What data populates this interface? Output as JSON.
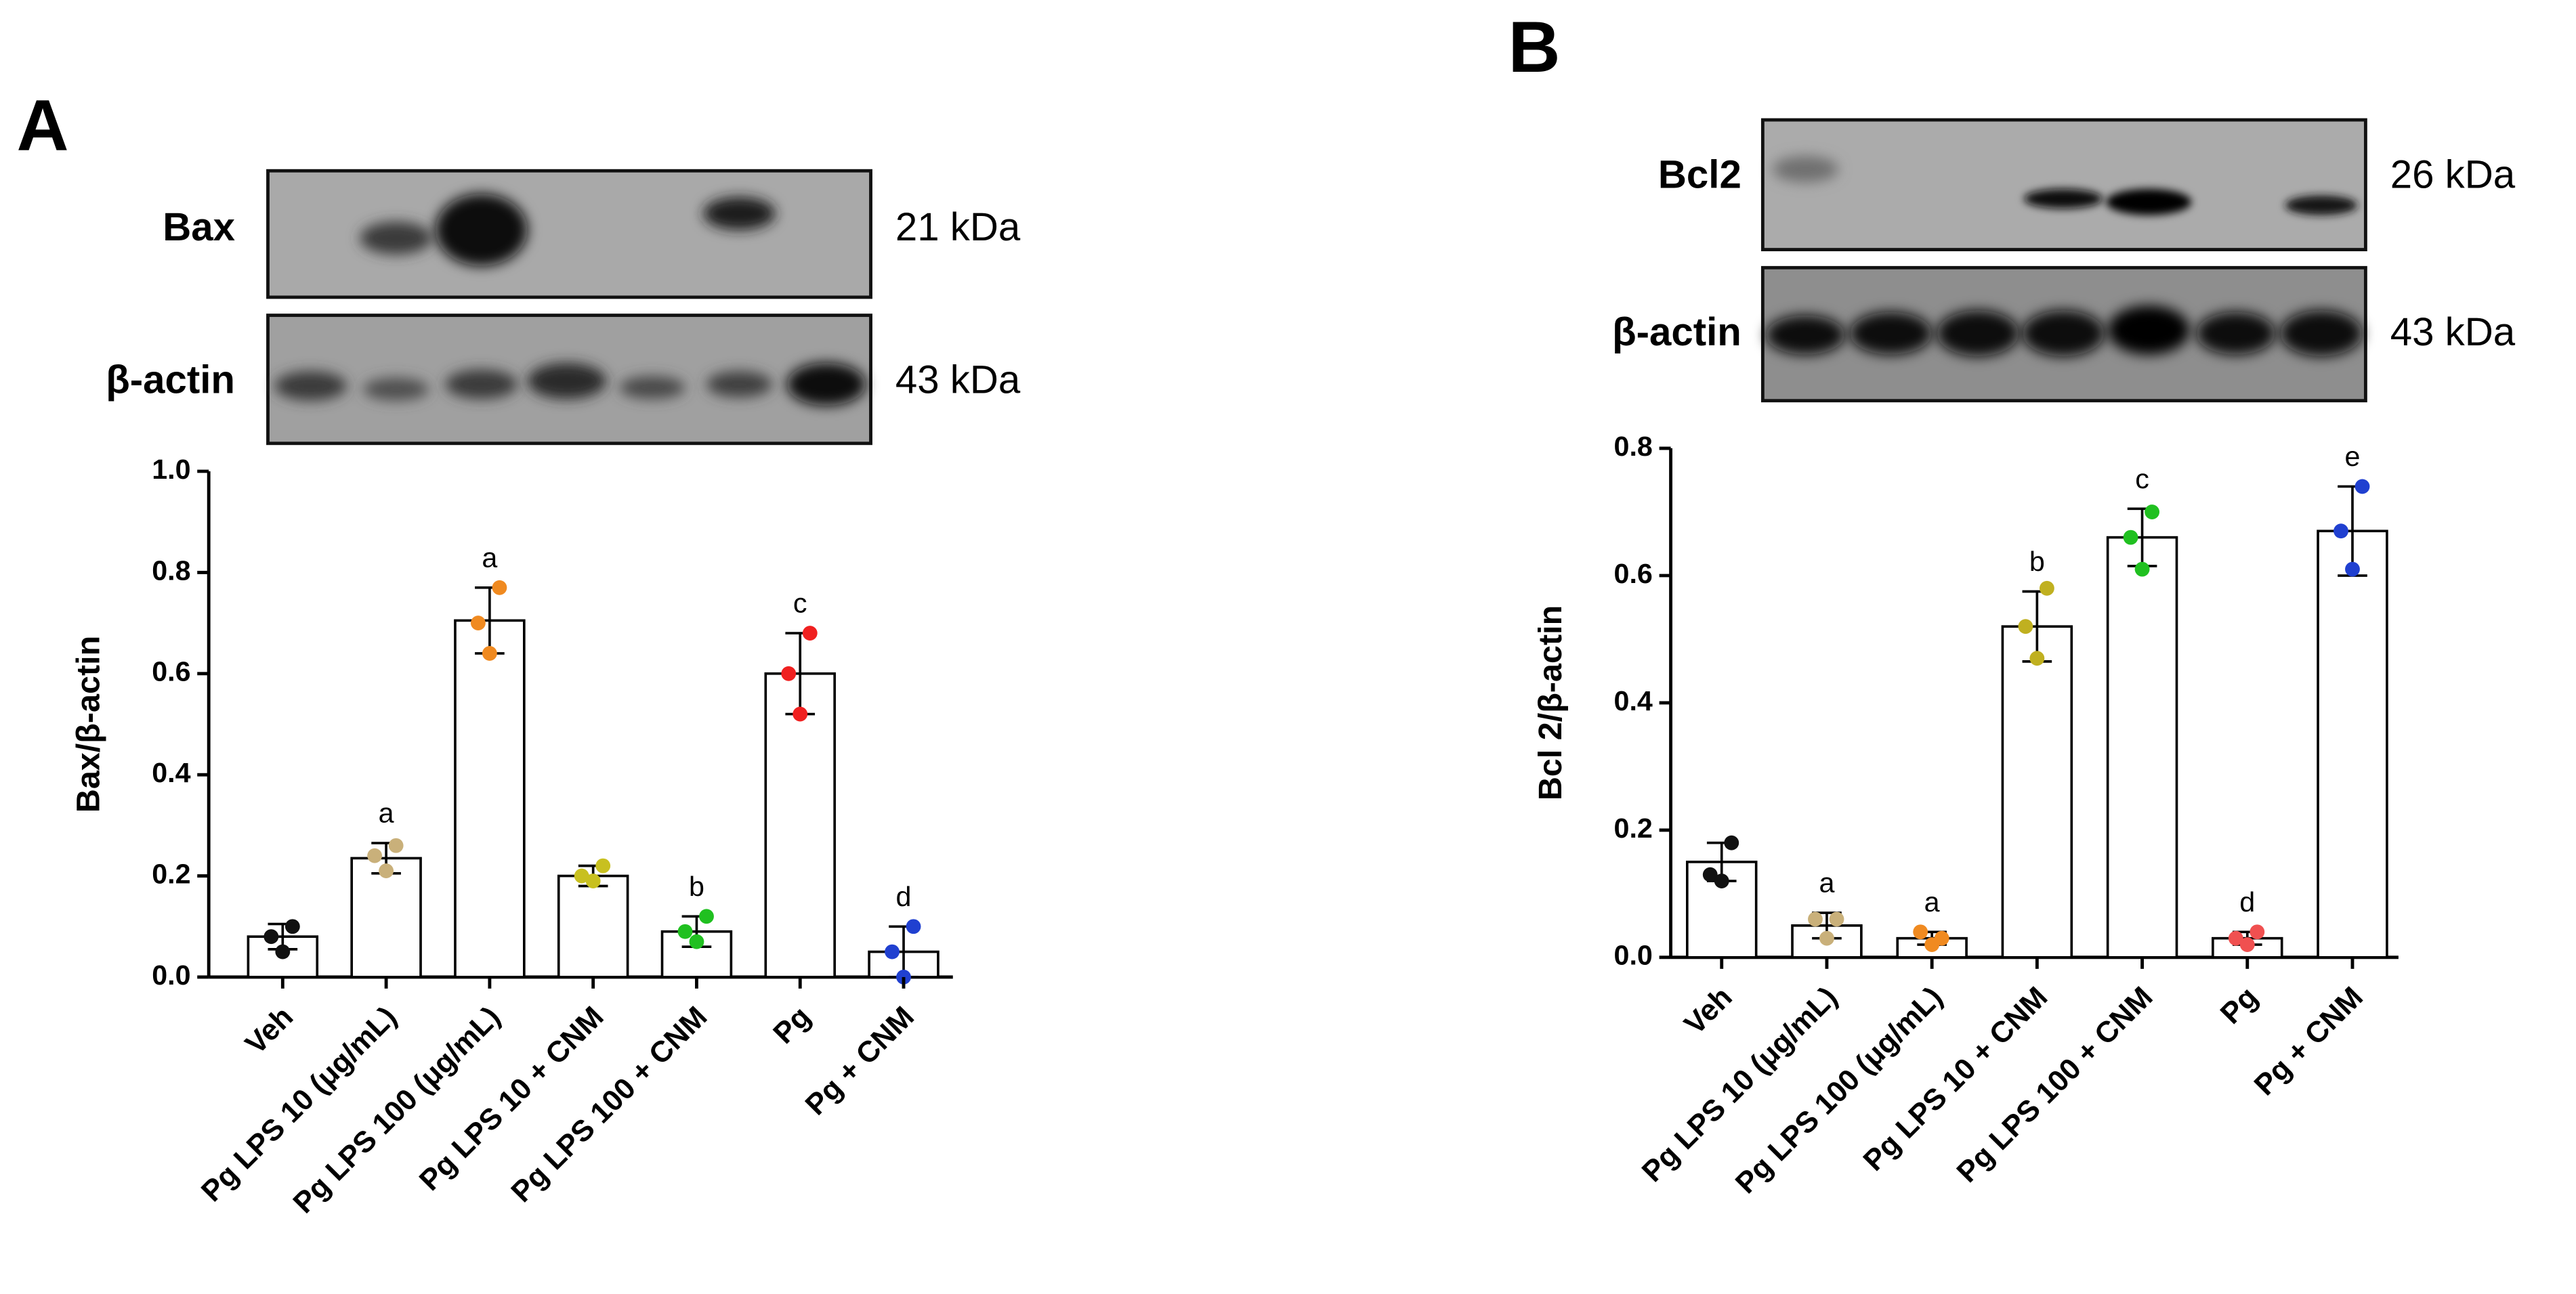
{
  "chart_data": [
    {
      "type": "bar",
      "panel": "A",
      "blots": [
        {
          "protein": "Bax",
          "size": "21 kDa"
        },
        {
          "protein": "β-actin",
          "size": "43 kDa"
        }
      ],
      "ylabel": "Bax/β-actin",
      "categories": [
        "Veh",
        "Pg LPS 10 (μg/mL)",
        "Pg LPS 100 (μg/mL)",
        "Pg LPS 10 + CNM",
        "Pg LPS 100 + CNM",
        "Pg",
        "Pg + CNM"
      ],
      "values": [
        0.08,
        0.235,
        0.705,
        0.2,
        0.09,
        0.6,
        0.05
      ],
      "errors": [
        0.025,
        0.03,
        0.065,
        0.02,
        0.03,
        0.08,
        0.05
      ],
      "points": [
        [
          0.1,
          0.08,
          0.05
        ],
        [
          0.26,
          0.24,
          0.21
        ],
        [
          0.77,
          0.7,
          0.64
        ],
        [
          0.22,
          0.2,
          0.19
        ],
        [
          0.12,
          0.09,
          0.07
        ],
        [
          0.68,
          0.6,
          0.52
        ],
        [
          0.1,
          0.05,
          0.0
        ]
      ],
      "point_colors": [
        "#111111",
        "#c9b07a",
        "#f08a20",
        "#c8c020",
        "#20c020",
        "#f02020",
        "#2040d0"
      ],
      "letters": [
        null,
        "a",
        "a",
        null,
        "b",
        "c",
        "d"
      ],
      "bar_color": "#ffffff",
      "ylim": [
        0,
        1.0
      ],
      "yticks": [
        {
          "value": 0,
          "label": "0.0"
        },
        0.2,
        0.4,
        0.6,
        0.8,
        {
          "value": 1,
          "label": "1.0"
        }
      ]
    },
    {
      "type": "bar",
      "panel": "B",
      "blots": [
        {
          "protein": "Bcl2",
          "size": "26 kDa"
        },
        {
          "protein": "β-actin",
          "size": "43 kDa"
        }
      ],
      "ylabel": "Bcl 2/β-actin",
      "categories": [
        "Veh",
        "Pg LPS 10 (μg/mL)",
        "Pg LPS 100 (μg/mL)",
        "Pg LPS 10 + CNM",
        "Pg LPS 100 + CNM",
        "Pg",
        "Pg + CNM"
      ],
      "values": [
        0.15,
        0.05,
        0.03,
        0.52,
        0.66,
        0.03,
        0.67
      ],
      "errors": [
        0.03,
        0.02,
        0.01,
        0.055,
        0.045,
        0.01,
        0.07
      ],
      "points": [
        [
          0.18,
          0.13,
          0.12
        ],
        [
          0.06,
          0.06,
          0.03
        ],
        [
          0.03,
          0.04,
          0.02
        ],
        [
          0.58,
          0.52,
          0.47
        ],
        [
          0.7,
          0.66,
          0.61
        ],
        [
          0.04,
          0.03,
          0.02
        ],
        [
          0.74,
          0.67,
          0.61
        ]
      ],
      "point_colors": [
        "#111111",
        "#c9b07a",
        "#f08a20",
        "#c0b020",
        "#20c020",
        "#f05050",
        "#2040d0"
      ],
      "letters": [
        null,
        "a",
        "a",
        "b",
        "c",
        "d",
        "e"
      ],
      "bar_color": "#ffffff",
      "ylim": [
        0,
        0.8
      ],
      "yticks": [
        {
          "value": 0,
          "label": "0.0"
        },
        0.2,
        0.4,
        0.6,
        0.8
      ]
    }
  ]
}
